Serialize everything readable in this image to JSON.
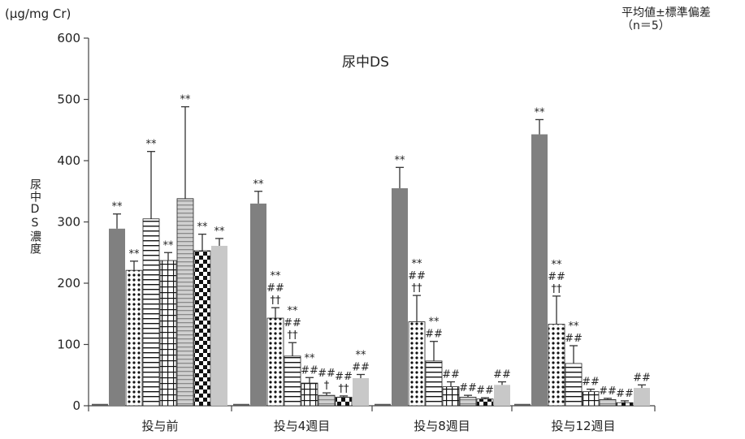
{
  "header": {
    "unit_label": "(μg/mg Cr)",
    "stats_note_line1": "平均値±標準偏差",
    "stats_note_line2": "（n＝5）"
  },
  "chart_data": {
    "type": "bar",
    "title": "尿中DS",
    "ylabel": "尿中DS濃度",
    "xlabel": "",
    "ylim": [
      0,
      600
    ],
    "yticks": [
      0,
      100,
      200,
      300,
      400,
      500,
      600
    ],
    "categories": [
      "投与前",
      "投与4週目",
      "投与8週目",
      "投与12週目"
    ],
    "legend": "none",
    "grid": false,
    "series": [
      {
        "values": [
          3,
          3,
          3,
          3
        ],
        "error": [
          0,
          0,
          0,
          0
        ],
        "sig": [
          [],
          [],
          [],
          []
        ],
        "style": {
          "color": "#595959",
          "pattern": "solid"
        }
      },
      {
        "values": [
          289,
          330,
          355,
          443
        ],
        "error": [
          24,
          20,
          34,
          24
        ],
        "sig": [
          [
            "**"
          ],
          [
            "**"
          ],
          [
            "**"
          ],
          [
            "**"
          ]
        ],
        "style": {
          "color": "#808080",
          "pattern": "solid"
        }
      },
      {
        "values": [
          221,
          143,
          137,
          133
        ],
        "error": [
          15,
          17,
          43,
          46
        ],
        "sig": [
          [
            "**"
          ],
          [
            "**",
            "##",
            "††"
          ],
          [
            "**",
            "##",
            "††"
          ],
          [
            "**",
            "##",
            "††"
          ]
        ],
        "style": {
          "color": "#111111",
          "pattern": "dots"
        }
      },
      {
        "values": [
          305,
          81,
          73,
          69
        ],
        "error": [
          110,
          22,
          32,
          29
        ],
        "sig": [
          [
            "**"
          ],
          [
            "**",
            "##",
            "††"
          ],
          [
            "**",
            "##"
          ],
          [
            "**",
            "##"
          ]
        ],
        "style": {
          "color": "#111111",
          "pattern": "hlines"
        }
      },
      {
        "values": [
          237,
          37,
          31,
          23
        ],
        "error": [
          13,
          9,
          8,
          4
        ],
        "sig": [
          [
            "**"
          ],
          [
            "**",
            "##"
          ],
          [
            "##"
          ],
          [
            "##"
          ]
        ],
        "style": {
          "color": "#111111",
          "pattern": "grid"
        }
      },
      {
        "values": [
          338,
          17,
          14,
          10
        ],
        "error": [
          150,
          4,
          3,
          2
        ],
        "sig": [
          [
            "**"
          ],
          [
            "##",
            "†"
          ],
          [
            "##"
          ],
          [
            "##"
          ]
        ],
        "style": {
          "color": "#9a9a9a",
          "pattern": "hlines-gray"
        }
      },
      {
        "values": [
          253,
          14,
          11,
          5
        ],
        "error": [
          27,
          2,
          2,
          3
        ],
        "sig": [
          [
            "**"
          ],
          [
            "##",
            "††"
          ],
          [
            "##"
          ],
          [
            "##"
          ]
        ],
        "style": {
          "color": "#111111",
          "pattern": "checker"
        }
      },
      {
        "values": [
          261,
          45,
          34,
          29
        ],
        "error": [
          12,
          6,
          5,
          5
        ],
        "sig": [
          [
            "**"
          ],
          [
            "**",
            "##"
          ],
          [
            "##"
          ],
          [
            "##"
          ]
        ],
        "style": {
          "color": "#c8c8c8",
          "pattern": "solid"
        }
      }
    ]
  }
}
